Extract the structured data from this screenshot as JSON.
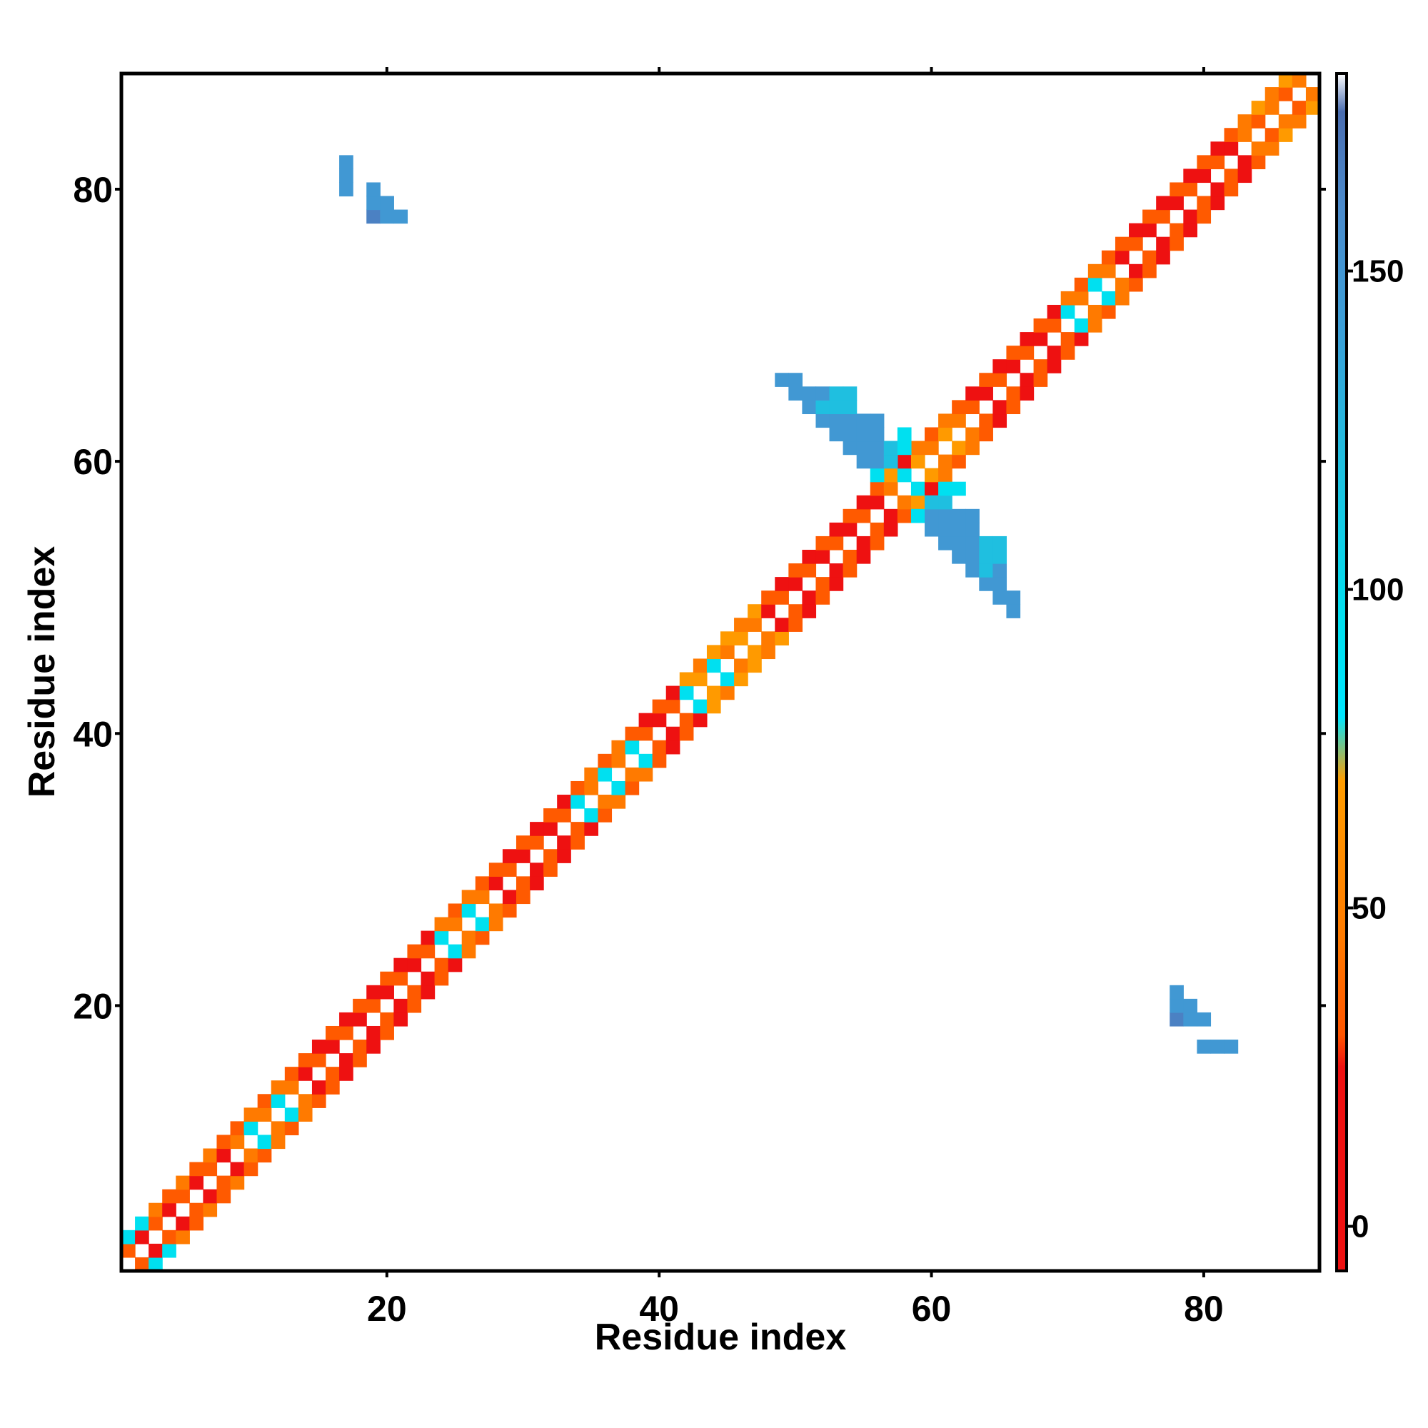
{
  "chart_data": {
    "type": "heatmap",
    "title": "",
    "xlabel": "Residue index",
    "ylabel": "Residue index",
    "xlim": [
      1,
      88
    ],
    "ylim": [
      1,
      88
    ],
    "xticks": [
      20,
      40,
      60,
      80
    ],
    "yticks": [
      20,
      40,
      60,
      80
    ],
    "colorbar": {
      "ticks": [
        0,
        50,
        100,
        150
      ],
      "range": [
        -7,
        181
      ],
      "stops": [
        {
          "value": -7,
          "color": "#ee1111"
        },
        {
          "value": 25,
          "color": "#ee1111"
        },
        {
          "value": 30,
          "color": "#ff5500"
        },
        {
          "value": 45,
          "color": "#ff7a00"
        },
        {
          "value": 70,
          "color": "#ff9d00"
        },
        {
          "value": 80,
          "color": "#00e6ff"
        },
        {
          "value": 95,
          "color": "#00e0f0"
        },
        {
          "value": 120,
          "color": "#1fbfe0"
        },
        {
          "value": 140,
          "color": "#3aa0d8"
        },
        {
          "value": 160,
          "color": "#4b8bcc"
        },
        {
          "value": 175,
          "color": "#4a6db0"
        },
        {
          "value": 181,
          "color": "#ffffff"
        }
      ]
    },
    "value_categories": {
      "red": 8,
      "orange_red": 32,
      "orange": 45,
      "gold": 68,
      "cyan": 95,
      "sky": 120,
      "steel": 148,
      "deep": 165
    },
    "bands": [
      {
        "from": 1,
        "to": 8,
        "k1": [
          "red",
          "orange_red"
        ],
        "k2": [
          "orange_red",
          "orange"
        ]
      },
      {
        "from": 9,
        "to": 13,
        "k1": [
          "cyan",
          "orange"
        ],
        "k2": [
          "orange",
          "orange_red"
        ]
      },
      {
        "from": 14,
        "to": 23,
        "k1": [
          "red",
          "orange_red"
        ],
        "k2": [
          "orange_red",
          "red"
        ]
      },
      {
        "from": 24,
        "to": 27,
        "k1": [
          "cyan",
          "orange"
        ],
        "k2": [
          "orange",
          "orange_red"
        ]
      },
      {
        "from": 28,
        "to": 33,
        "k1": [
          "red",
          "orange_red"
        ],
        "k2": [
          "orange_red",
          "red"
        ]
      },
      {
        "from": 34,
        "to": 38,
        "k1": [
          "cyan",
          "orange"
        ],
        "k2": [
          "orange_red",
          "orange"
        ]
      },
      {
        "from": 39,
        "to": 41,
        "k1": [
          "red",
          "orange_red"
        ],
        "k2": [
          "orange_red",
          "red"
        ]
      },
      {
        "from": 42,
        "to": 44,
        "k1": [
          "cyan",
          "gold"
        ],
        "k2": [
          "gold",
          "orange"
        ]
      },
      {
        "from": 45,
        "to": 47,
        "k1": [
          "gold",
          "orange"
        ],
        "k2": [
          "orange",
          "gold"
        ]
      },
      {
        "from": 48,
        "to": 56,
        "k1": [
          "red",
          "orange_red"
        ],
        "k2": [
          "orange_red",
          "red"
        ]
      },
      {
        "from": 57,
        "to": 58,
        "k1": [
          "cyan",
          "orange"
        ],
        "k2": [
          "red",
          "gold"
        ]
      },
      {
        "from": 59,
        "to": 62,
        "k1": [
          "orange",
          "gold"
        ],
        "k2": [
          "orange_red",
          "orange"
        ]
      },
      {
        "from": 63,
        "to": 69,
        "k1": [
          "red",
          "orange_red"
        ],
        "k2": [
          "orange_red",
          "red"
        ]
      },
      {
        "from": 70,
        "to": 73,
        "k1": [
          "cyan",
          "orange"
        ],
        "k2": [
          "orange",
          "orange_red"
        ]
      },
      {
        "from": 74,
        "to": 82,
        "k1": [
          "red",
          "orange_red"
        ],
        "k2": [
          "orange_red",
          "red"
        ]
      },
      {
        "from": 83,
        "to": 88,
        "k1": [
          "orange_red",
          "orange"
        ],
        "k2": [
          "gold",
          "orange"
        ]
      }
    ],
    "cells": [
      {
        "i": 1,
        "j": 3,
        "c": "cyan"
      },
      {
        "i": 2,
        "j": 4,
        "c": "cyan"
      },
      {
        "i": 49,
        "j": 66,
        "c": "steel"
      },
      {
        "i": 50,
        "j": 65,
        "c": "steel"
      },
      {
        "i": 50,
        "j": 66,
        "c": "steel"
      },
      {
        "i": 51,
        "j": 64,
        "c": "steel"
      },
      {
        "i": 51,
        "j": 65,
        "c": "steel"
      },
      {
        "i": 52,
        "j": 63,
        "c": "steel"
      },
      {
        "i": 52,
        "j": 64,
        "c": "sky"
      },
      {
        "i": 52,
        "j": 65,
        "c": "steel"
      },
      {
        "i": 53,
        "j": 62,
        "c": "steel"
      },
      {
        "i": 53,
        "j": 63,
        "c": "steel"
      },
      {
        "i": 53,
        "j": 64,
        "c": "sky"
      },
      {
        "i": 53,
        "j": 65,
        "c": "sky"
      },
      {
        "i": 54,
        "j": 61,
        "c": "steel"
      },
      {
        "i": 54,
        "j": 62,
        "c": "steel"
      },
      {
        "i": 54,
        "j": 63,
        "c": "steel"
      },
      {
        "i": 54,
        "j": 64,
        "c": "sky"
      },
      {
        "i": 54,
        "j": 65,
        "c": "sky"
      },
      {
        "i": 55,
        "j": 60,
        "c": "steel"
      },
      {
        "i": 55,
        "j": 61,
        "c": "steel"
      },
      {
        "i": 55,
        "j": 62,
        "c": "steel"
      },
      {
        "i": 55,
        "j": 63,
        "c": "steel"
      },
      {
        "i": 56,
        "j": 59,
        "c": "cyan"
      },
      {
        "i": 56,
        "j": 60,
        "c": "steel"
      },
      {
        "i": 56,
        "j": 61,
        "c": "steel"
      },
      {
        "i": 56,
        "j": 62,
        "c": "steel"
      },
      {
        "i": 56,
        "j": 63,
        "c": "steel"
      },
      {
        "i": 57,
        "j": 60,
        "c": "sky"
      },
      {
        "i": 57,
        "j": 61,
        "c": "sky"
      },
      {
        "i": 58,
        "j": 61,
        "c": "cyan"
      },
      {
        "i": 58,
        "j": 62,
        "c": "cyan"
      },
      {
        "i": 17,
        "j": 80,
        "c": "steel"
      },
      {
        "i": 17,
        "j": 81,
        "c": "steel"
      },
      {
        "i": 17,
        "j": 82,
        "c": "steel"
      },
      {
        "i": 19,
        "j": 78,
        "c": "deep"
      },
      {
        "i": 19,
        "j": 79,
        "c": "steel"
      },
      {
        "i": 19,
        "j": 80,
        "c": "steel"
      },
      {
        "i": 20,
        "j": 78,
        "c": "steel"
      },
      {
        "i": 20,
        "j": 79,
        "c": "steel"
      },
      {
        "i": 21,
        "j": 78,
        "c": "steel"
      }
    ]
  }
}
